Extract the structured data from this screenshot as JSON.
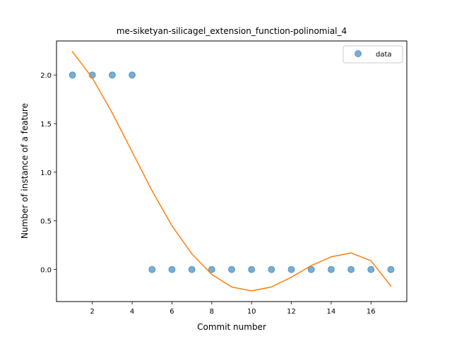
{
  "chart_data": {
    "type": "scatter",
    "title": "me-siketyan-silicagel_extension_function-polinomial_4",
    "xlabel": "Commit number",
    "ylabel": "Number of instance of a feature",
    "xlim": [
      0.2,
      17.8
    ],
    "ylim": [
      -0.33,
      2.35
    ],
    "xticks": [
      2,
      4,
      6,
      8,
      10,
      12,
      14,
      16
    ],
    "yticks": [
      0.0,
      0.5,
      1.0,
      1.5,
      2.0
    ],
    "ytick_labels": [
      "0.0",
      "0.5",
      "1.0",
      "1.5",
      "2.0"
    ],
    "legend_position": "top-right",
    "grid": false,
    "series": [
      {
        "name": "data",
        "kind": "scatter",
        "color": "#1f77b4",
        "x": [
          1,
          2,
          3,
          4,
          5,
          6,
          7,
          8,
          9,
          10,
          11,
          12,
          13,
          14,
          15,
          16,
          17
        ],
        "y": [
          2,
          2,
          2,
          2,
          0,
          0,
          0,
          0,
          0,
          0,
          0,
          0,
          0,
          0,
          0,
          0,
          0
        ]
      },
      {
        "kind": "line",
        "color": "#ff7f0e",
        "x": [
          1,
          2,
          3,
          4,
          5,
          6,
          7,
          8,
          9,
          10,
          11,
          12,
          13,
          14,
          15,
          16,
          17
        ],
        "y": [
          2.24,
          1.97,
          1.61,
          1.21,
          0.81,
          0.45,
          0.16,
          -0.05,
          -0.18,
          -0.22,
          -0.18,
          -0.08,
          0.04,
          0.13,
          0.17,
          0.09,
          -0.17
        ]
      }
    ]
  }
}
